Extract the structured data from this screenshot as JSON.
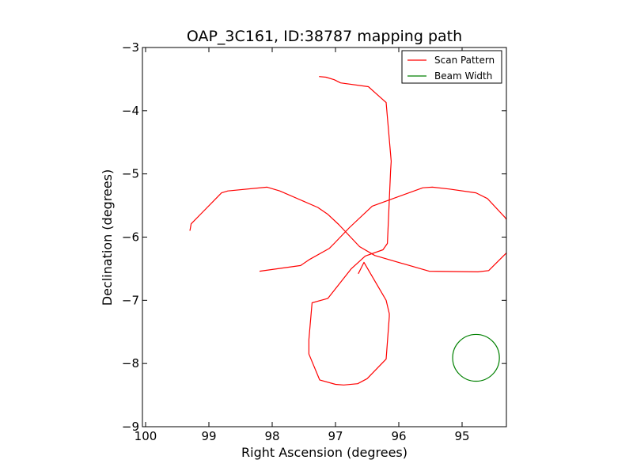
{
  "chart_data": {
    "type": "line",
    "title": "OAP_3C161, ID:38787 mapping path",
    "xlabel": "Right Ascension (degrees)",
    "ylabel": "Declination (degrees)",
    "xlim": [
      100.05,
      94.3
    ],
    "ylim": [
      -9,
      -3
    ],
    "x_inverted": true,
    "xticks": [
      100,
      99,
      98,
      97,
      96,
      95
    ],
    "xtick_labels": [
      "100",
      "99",
      "98",
      "97",
      "96",
      "95"
    ],
    "yticks": [
      -9,
      -8,
      -7,
      -6,
      -5,
      -4,
      -3
    ],
    "ytick_labels": [
      "−9",
      "−8",
      "−7",
      "−6",
      "−5",
      "−4",
      "−3"
    ],
    "legend_position": "top-right",
    "grid": false,
    "series": [
      {
        "name": "Scan Pattern",
        "color": "#ff0000",
        "x": [
          99.3,
          99.28,
          98.8,
          98.7,
          98.08,
          97.88,
          97.28,
          97.12,
          96.95,
          96.62,
          96.38,
          95.52,
          94.75,
          94.58,
          94.3,
          94.27,
          94.28,
          94.32,
          94.6,
          94.78,
          95.2,
          95.47,
          95.62,
          96.42,
          96.78,
          97.02,
          97.1,
          97.42,
          97.55,
          98.2
        ],
        "y": [
          -5.9,
          -5.79,
          -5.3,
          -5.27,
          -5.21,
          -5.27,
          -5.53,
          -5.64,
          -5.8,
          -6.15,
          -6.29,
          -6.54,
          -6.55,
          -6.53,
          -6.25,
          -6.15,
          -5.75,
          -5.69,
          -5.39,
          -5.3,
          -5.24,
          -5.21,
          -5.22,
          -5.51,
          -5.85,
          -6.1,
          -6.18,
          -6.36,
          -6.45,
          -6.54
        ]
      },
      {
        "name": "",
        "color": "#ff0000",
        "x": [
          96.64,
          96.55,
          96.2,
          96.15,
          96.15,
          96.2,
          96.5,
          96.65,
          96.87,
          97.0,
          97.25,
          97.42,
          97.42,
          97.37,
          97.12,
          96.75,
          96.53,
          96.25,
          96.18,
          96.13,
          96.12,
          96.2,
          96.38,
          96.48,
          96.92,
          97.02,
          97.15,
          97.26
        ],
        "y": [
          -6.58,
          -6.4,
          -7.0,
          -7.21,
          -7.26,
          -7.93,
          -8.24,
          -8.32,
          -8.34,
          -8.33,
          -8.26,
          -7.85,
          -7.62,
          -7.04,
          -6.97,
          -6.5,
          -6.3,
          -6.2,
          -6.1,
          -4.96,
          -4.8,
          -3.87,
          -3.71,
          -3.62,
          -3.56,
          -3.51,
          -3.47,
          -3.46
        ]
      },
      {
        "name": "Beam Width",
        "color": "#008000",
        "shape": "circle",
        "center": [
          94.78,
          -7.91
        ],
        "radius": 0.37
      }
    ]
  }
}
